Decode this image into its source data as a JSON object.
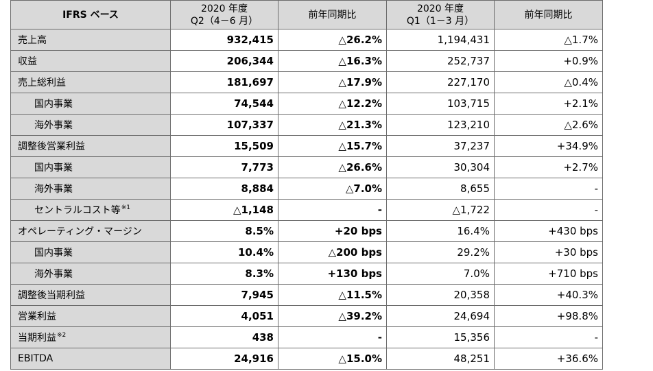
{
  "headers": {
    "label": "IFRS ベース",
    "q2_line1": "2020 年度",
    "q2_line2": "Q2（4－6 月）",
    "q2_yoy": "前年同期比",
    "q1_line1": "2020 年度",
    "q1_line2": "Q1（1－3 月）",
    "q1_yoy": "前年同期比"
  },
  "rows": [
    {
      "label": "売上高",
      "note": "",
      "indent": false,
      "q2": "932,415",
      "q2_yoy": "△26.2%",
      "q1": "1,194,431",
      "q1_yoy": "△1.7%"
    },
    {
      "label": "収益",
      "note": "",
      "indent": false,
      "q2": "206,344",
      "q2_yoy": "△16.3%",
      "q1": "252,737",
      "q1_yoy": "+0.9%"
    },
    {
      "label": "売上総利益",
      "note": "",
      "indent": false,
      "q2": "181,697",
      "q2_yoy": "△17.9%",
      "q1": "227,170",
      "q1_yoy": "△0.4%"
    },
    {
      "label": "国内事業",
      "note": "",
      "indent": true,
      "q2": "74,544",
      "q2_yoy": "△12.2%",
      "q1": "103,715",
      "q1_yoy": "+2.1%"
    },
    {
      "label": "海外事業",
      "note": "",
      "indent": true,
      "q2": "107,337",
      "q2_yoy": "△21.3%",
      "q1": "123,210",
      "q1_yoy": "△2.6%"
    },
    {
      "label": "調整後営業利益",
      "note": "",
      "indent": false,
      "q2": "15,509",
      "q2_yoy": "△15.7%",
      "q1": "37,237",
      "q1_yoy": "+34.9%"
    },
    {
      "label": "国内事業",
      "note": "",
      "indent": true,
      "q2": "7,773",
      "q2_yoy": "△26.6%",
      "q1": "30,304",
      "q1_yoy": "+2.7%"
    },
    {
      "label": "海外事業",
      "note": "",
      "indent": true,
      "q2": "8,884",
      "q2_yoy": "△7.0%",
      "q1": "8,655",
      "q1_yoy": "-"
    },
    {
      "label": "セントラルコスト等",
      "note": "※1",
      "indent": true,
      "q2": "△1,148",
      "q2_yoy": "-",
      "q1": "△1,722",
      "q1_yoy": "-"
    },
    {
      "label": "オペレーティング・マージン",
      "note": "",
      "indent": false,
      "q2": "8.5%",
      "q2_yoy": "+20 bps",
      "q1": "16.4%",
      "q1_yoy": "+430 bps"
    },
    {
      "label": "国内事業",
      "note": "",
      "indent": true,
      "q2": "10.4%",
      "q2_yoy": "△200 bps",
      "q1": "29.2%",
      "q1_yoy": "+30 bps"
    },
    {
      "label": "海外事業",
      "note": "",
      "indent": true,
      "q2": "8.3%",
      "q2_yoy": "+130 bps",
      "q1": "7.0%",
      "q1_yoy": "+710 bps"
    },
    {
      "label": "調整後当期利益",
      "note": "",
      "indent": false,
      "q2": "7,945",
      "q2_yoy": "△11.5%",
      "q1": "20,358",
      "q1_yoy": "+40.3%"
    },
    {
      "label": "営業利益",
      "note": "",
      "indent": false,
      "q2": "4,051",
      "q2_yoy": "△39.2%",
      "q1": "24,694",
      "q1_yoy": "+98.8%"
    },
    {
      "label": "当期利益",
      "note": "※2",
      "indent": false,
      "q2": "438",
      "q2_yoy": "-",
      "q1": "15,356",
      "q1_yoy": "-"
    },
    {
      "label": "EBITDA",
      "note": "",
      "indent": false,
      "q2": "24,916",
      "q2_yoy": "△15.0%",
      "q1": "48,251",
      "q1_yoy": "+36.6%"
    }
  ],
  "colors": {
    "header_bg": "#d9d9d9",
    "label_bg": "#d9d9d9",
    "border": "#6b6b6b"
  }
}
